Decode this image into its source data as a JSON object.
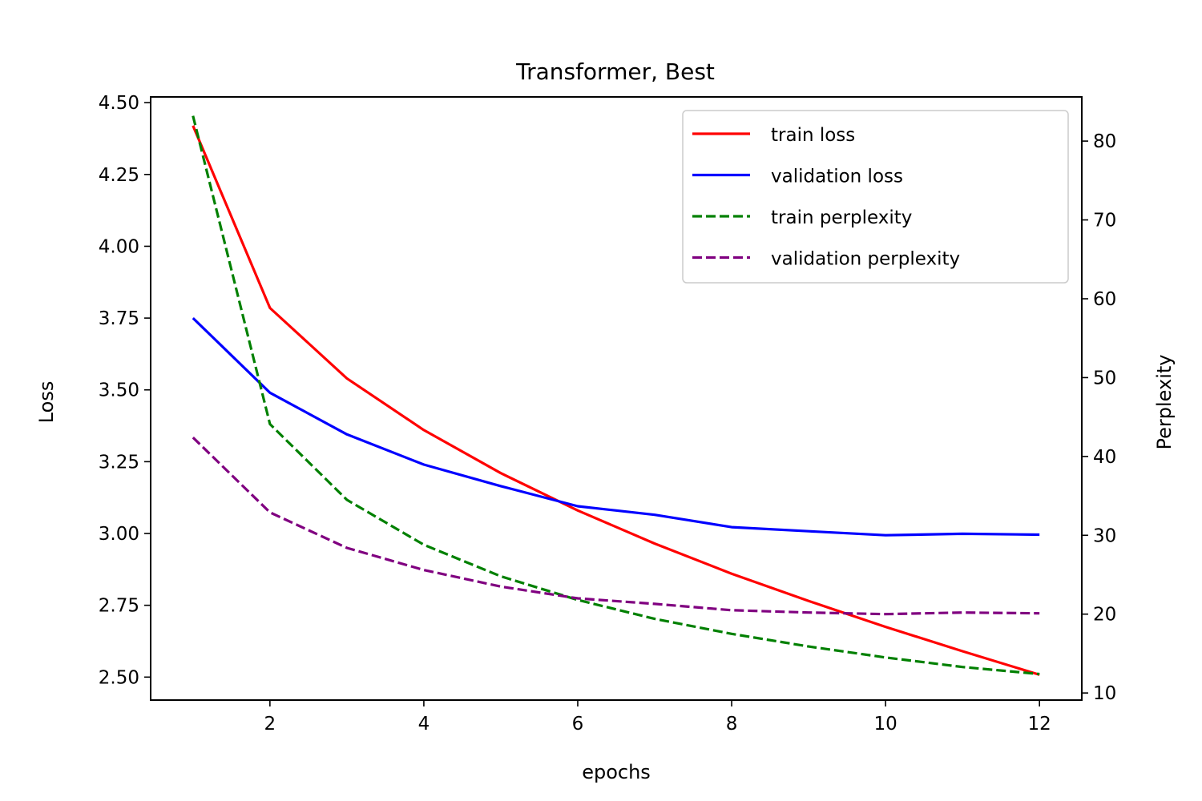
{
  "chart_data": {
    "type": "line",
    "title": "Transformer, Best",
    "xlabel": "epochs",
    "ylabel_left": "Loss",
    "ylabel_right": "Perplexity",
    "xlim": [
      0.45,
      12.55
    ],
    "ylim_left": [
      2.42,
      4.52
    ],
    "ylim_right": [
      9.1,
      85.6
    ],
    "xticks": [
      2,
      4,
      6,
      8,
      10,
      12
    ],
    "yticks_left": [
      "2.50",
      "2.75",
      "3.00",
      "3.25",
      "3.50",
      "3.75",
      "4.00",
      "4.25",
      "4.50"
    ],
    "yticks_right": [
      10,
      20,
      30,
      40,
      50,
      60,
      70,
      80
    ],
    "legend_position": "upper right",
    "grid": false,
    "x": [
      1,
      2,
      3,
      4,
      5,
      6,
      7,
      8,
      9,
      10,
      11,
      12
    ],
    "series": [
      {
        "name": "train loss",
        "axis": "left",
        "color": "#ff0000",
        "dash": "solid",
        "values": [
          4.42,
          3.785,
          3.54,
          3.36,
          3.21,
          3.08,
          2.965,
          2.86,
          2.765,
          2.675,
          2.59,
          2.508
        ]
      },
      {
        "name": "validation loss",
        "axis": "left",
        "color": "#0000ff",
        "dash": "solid",
        "values": [
          3.75,
          3.49,
          3.345,
          3.24,
          3.165,
          3.095,
          3.065,
          3.022,
          3.008,
          2.994,
          2.999,
          2.996
        ]
      },
      {
        "name": "train perplexity",
        "axis": "right",
        "color": "#008000",
        "dash": "dashed",
        "values": [
          83.2,
          44.1,
          34.5,
          28.8,
          24.8,
          21.8,
          19.4,
          17.5,
          15.9,
          14.5,
          13.3,
          12.4
        ]
      },
      {
        "name": "validation perplexity",
        "axis": "right",
        "color": "#800080",
        "dash": "dashed",
        "values": [
          42.4,
          32.9,
          28.4,
          25.6,
          23.5,
          22.0,
          21.3,
          20.5,
          20.2,
          20.0,
          20.2,
          20.1
        ]
      }
    ]
  }
}
